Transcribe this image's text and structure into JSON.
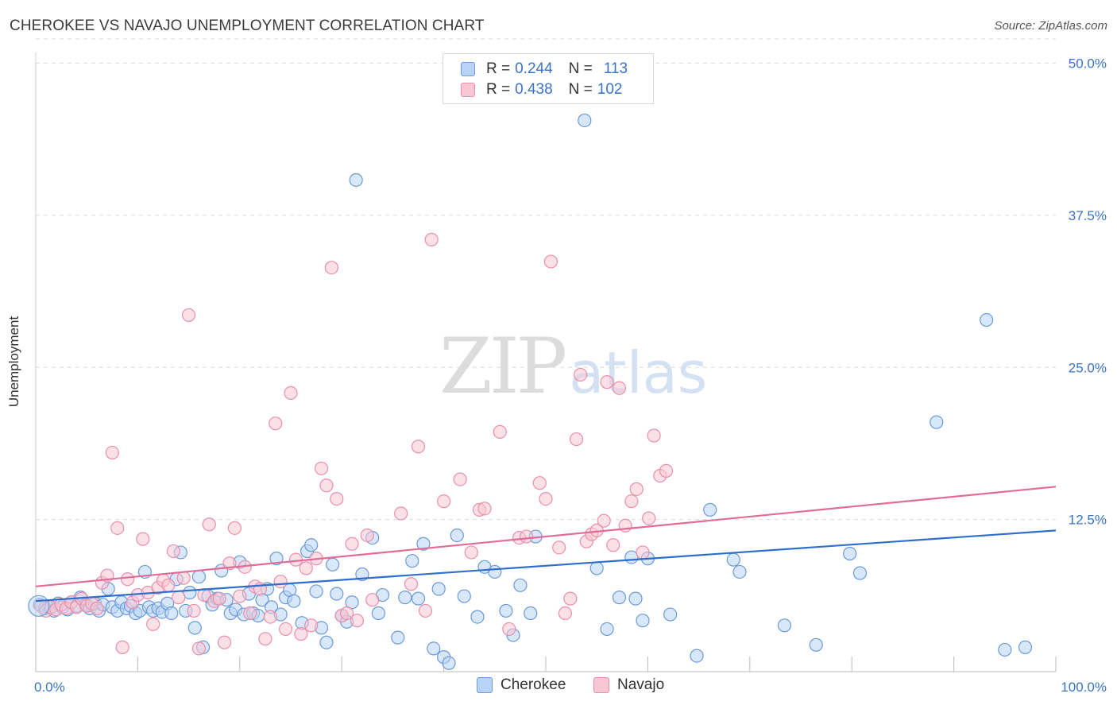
{
  "title": "CHEROKEE VS NAVAJO UNEMPLOYMENT CORRELATION CHART",
  "source": "Source: ZipAtlas.com",
  "watermark": {
    "zip": "ZIP",
    "atlas": "atlas"
  },
  "legend_top": {
    "rows": [
      {
        "r_label": "R =",
        "r_value": "0.244",
        "n_label": "N =",
        "n_value": "113"
      },
      {
        "r_label": "R =",
        "r_value": "0.438",
        "n_label": "N =",
        "n_value": "102"
      }
    ]
  },
  "colors": {
    "cherokee_fill": "#b8d3f5",
    "cherokee_stroke": "#6b9ad6",
    "cherokee_line": "#2f6fca",
    "navajo_fill": "#f8c6d4",
    "navajo_stroke": "#e88fab",
    "navajo_line": "#e06c97",
    "grid": "#dcdcdc",
    "axis_label": "#3b73c4"
  },
  "chart_data": {
    "type": "scatter",
    "title": "CHEROKEE VS NAVAJO UNEMPLOYMENT CORRELATION CHART",
    "xlabel": "",
    "ylabel": "Unemployment",
    "xlim": [
      0,
      100
    ],
    "ylim": [
      0,
      52
    ],
    "x_tick_labels": [
      "0.0%",
      "100.0%"
    ],
    "y_ticks": [
      12.5,
      25.0,
      37.5,
      50.0
    ],
    "y_tick_labels": [
      "12.5%",
      "25.0%",
      "37.5%",
      "50.0%"
    ],
    "grid": true,
    "legend": "bottom-center",
    "series": [
      {
        "name": "Cherokee",
        "r": 0.244,
        "n": 113,
        "trend": {
          "x": [
            0,
            100
          ],
          "y": [
            5.8,
            11.6
          ]
        },
        "points": [
          [
            0.4,
            5.5
          ],
          [
            0.9,
            5.2
          ],
          [
            1.3,
            5.3
          ],
          [
            1.8,
            5.0
          ],
          [
            2.2,
            5.6
          ],
          [
            2.6,
            5.3
          ],
          [
            3.1,
            5.1
          ],
          [
            3.5,
            5.7
          ],
          [
            4.0,
            5.4
          ],
          [
            4.4,
            6.1
          ],
          [
            4.9,
            5.5
          ],
          [
            5.3,
            5.2
          ],
          [
            5.8,
            5.6
          ],
          [
            6.2,
            5.0
          ],
          [
            6.6,
            5.5
          ],
          [
            7.1,
            6.8
          ],
          [
            7.5,
            5.3
          ],
          [
            8.0,
            5.0
          ],
          [
            8.4,
            5.7
          ],
          [
            8.9,
            5.2
          ],
          [
            9.3,
            5.4
          ],
          [
            9.8,
            4.8
          ],
          [
            10.2,
            5.0
          ],
          [
            10.7,
            8.2
          ],
          [
            11.1,
            5.3
          ],
          [
            11.5,
            5.0
          ],
          [
            12.0,
            5.2
          ],
          [
            12.4,
            4.9
          ],
          [
            12.9,
            5.6
          ],
          [
            13.3,
            4.8
          ],
          [
            13.8,
            7.6
          ],
          [
            14.2,
            9.8
          ],
          [
            14.7,
            5.0
          ],
          [
            15.1,
            6.5
          ],
          [
            15.6,
            3.6
          ],
          [
            16.0,
            7.8
          ],
          [
            16.4,
            2.0
          ],
          [
            16.9,
            6.2
          ],
          [
            17.3,
            5.5
          ],
          [
            17.8,
            6.0
          ],
          [
            18.2,
            8.3
          ],
          [
            18.7,
            5.9
          ],
          [
            19.1,
            4.8
          ],
          [
            19.6,
            5.1
          ],
          [
            20.0,
            9.0
          ],
          [
            20.4,
            4.7
          ],
          [
            20.9,
            6.4
          ],
          [
            21.3,
            4.8
          ],
          [
            21.8,
            4.6
          ],
          [
            22.2,
            5.9
          ],
          [
            22.7,
            6.8
          ],
          [
            23.1,
            5.3
          ],
          [
            23.6,
            9.3
          ],
          [
            24.0,
            4.7
          ],
          [
            24.5,
            6.1
          ],
          [
            24.9,
            6.7
          ],
          [
            25.3,
            5.8
          ],
          [
            26.1,
            4.0
          ],
          [
            26.6,
            9.9
          ],
          [
            27.0,
            10.4
          ],
          [
            27.5,
            6.6
          ],
          [
            28.0,
            3.6
          ],
          [
            28.5,
            2.4
          ],
          [
            29.1,
            8.8
          ],
          [
            29.5,
            6.4
          ],
          [
            30.0,
            4.6
          ],
          [
            30.5,
            4.1
          ],
          [
            31.0,
            5.7
          ],
          [
            31.4,
            40.4
          ],
          [
            32.0,
            8.0
          ],
          [
            33.0,
            11.0
          ],
          [
            33.6,
            4.8
          ],
          [
            34.0,
            6.3
          ],
          [
            35.5,
            2.8
          ],
          [
            36.2,
            6.1
          ],
          [
            36.9,
            9.1
          ],
          [
            37.5,
            6.0
          ],
          [
            38.0,
            10.5
          ],
          [
            39.0,
            1.9
          ],
          [
            39.5,
            6.8
          ],
          [
            40.0,
            1.2
          ],
          [
            40.5,
            0.7
          ],
          [
            41.3,
            11.2
          ],
          [
            42.0,
            6.2
          ],
          [
            43.3,
            4.5
          ],
          [
            44.0,
            8.6
          ],
          [
            45.0,
            8.2
          ],
          [
            46.1,
            5.0
          ],
          [
            46.8,
            3.0
          ],
          [
            47.5,
            7.1
          ],
          [
            48.5,
            4.8
          ],
          [
            49.0,
            11.1
          ],
          [
            53.8,
            45.3
          ],
          [
            55.0,
            8.5
          ],
          [
            56.0,
            3.5
          ],
          [
            57.2,
            6.1
          ],
          [
            58.4,
            9.4
          ],
          [
            58.8,
            6.0
          ],
          [
            59.5,
            4.2
          ],
          [
            60.0,
            9.3
          ],
          [
            62.2,
            4.7
          ],
          [
            64.8,
            1.3
          ],
          [
            66.1,
            13.3
          ],
          [
            68.4,
            9.2
          ],
          [
            69.0,
            8.2
          ],
          [
            73.4,
            3.8
          ],
          [
            76.5,
            2.2
          ],
          [
            79.8,
            9.7
          ],
          [
            80.8,
            8.1
          ],
          [
            88.3,
            20.5
          ],
          [
            93.2,
            28.9
          ],
          [
            95.0,
            1.8
          ],
          [
            97.0,
            2.0
          ]
        ]
      },
      {
        "name": "Navajo",
        "r": 0.438,
        "n": 102,
        "trend": {
          "x": [
            0,
            100
          ],
          "y": [
            7.0,
            15.2
          ]
        },
        "points": [
          [
            0.5,
            5.4
          ],
          [
            1.0,
            5.0
          ],
          [
            1.5,
            5.3
          ],
          [
            2.0,
            5.1
          ],
          [
            2.5,
            5.5
          ],
          [
            3.0,
            5.2
          ],
          [
            3.5,
            5.7
          ],
          [
            4.0,
            5.3
          ],
          [
            4.5,
            6.0
          ],
          [
            5.0,
            5.4
          ],
          [
            5.5,
            5.6
          ],
          [
            6.0,
            5.2
          ],
          [
            6.5,
            7.3
          ],
          [
            7.0,
            7.9
          ],
          [
            7.5,
            18.0
          ],
          [
            8.0,
            11.8
          ],
          [
            8.5,
            2.0
          ],
          [
            9.0,
            7.6
          ],
          [
            9.5,
            5.7
          ],
          [
            10.0,
            6.3
          ],
          [
            10.5,
            10.9
          ],
          [
            11.0,
            6.5
          ],
          [
            11.5,
            3.9
          ],
          [
            12.0,
            6.9
          ],
          [
            12.5,
            7.5
          ],
          [
            13.0,
            7.1
          ],
          [
            13.5,
            9.9
          ],
          [
            14.0,
            6.1
          ],
          [
            14.5,
            7.7
          ],
          [
            15.0,
            29.3
          ],
          [
            15.5,
            5.0
          ],
          [
            16.0,
            1.9
          ],
          [
            16.5,
            6.3
          ],
          [
            17.0,
            12.1
          ],
          [
            17.5,
            5.8
          ],
          [
            18.0,
            6.0
          ],
          [
            18.5,
            2.4
          ],
          [
            19.0,
            8.9
          ],
          [
            19.5,
            11.8
          ],
          [
            20.0,
            6.2
          ],
          [
            20.5,
            8.6
          ],
          [
            21.0,
            4.8
          ],
          [
            21.5,
            7.0
          ],
          [
            22.0,
            6.8
          ],
          [
            22.5,
            2.7
          ],
          [
            23.0,
            4.5
          ],
          [
            23.5,
            20.4
          ],
          [
            24.0,
            7.4
          ],
          [
            24.5,
            3.5
          ],
          [
            25.0,
            22.9
          ],
          [
            25.5,
            9.2
          ],
          [
            26.0,
            3.1
          ],
          [
            26.5,
            8.5
          ],
          [
            27.0,
            3.8
          ],
          [
            27.5,
            9.3
          ],
          [
            28.0,
            16.7
          ],
          [
            28.5,
            15.3
          ],
          [
            29.0,
            33.2
          ],
          [
            29.5,
            14.2
          ],
          [
            30.0,
            4.6
          ],
          [
            30.5,
            4.8
          ],
          [
            31.0,
            10.5
          ],
          [
            31.5,
            4.2
          ],
          [
            32.5,
            11.2
          ],
          [
            33.0,
            5.9
          ],
          [
            35.8,
            13.0
          ],
          [
            36.8,
            7.2
          ],
          [
            37.5,
            18.5
          ],
          [
            38.2,
            5.0
          ],
          [
            38.8,
            35.5
          ],
          [
            40.0,
            14.0
          ],
          [
            41.6,
            15.8
          ],
          [
            42.7,
            9.8
          ],
          [
            43.5,
            13.3
          ],
          [
            44.0,
            13.4
          ],
          [
            45.5,
            19.7
          ],
          [
            46.4,
            3.5
          ],
          [
            47.4,
            11.0
          ],
          [
            48.1,
            11.1
          ],
          [
            49.4,
            15.5
          ],
          [
            50.0,
            14.2
          ],
          [
            50.5,
            33.7
          ],
          [
            51.3,
            10.2
          ],
          [
            51.9,
            4.8
          ],
          [
            52.4,
            6.0
          ],
          [
            53.0,
            19.1
          ],
          [
            53.4,
            24.4
          ],
          [
            54.0,
            10.7
          ],
          [
            54.5,
            11.3
          ],
          [
            55.0,
            11.6
          ],
          [
            55.7,
            12.4
          ],
          [
            56.0,
            23.8
          ],
          [
            56.6,
            10.4
          ],
          [
            57.2,
            23.3
          ],
          [
            57.8,
            12.0
          ],
          [
            58.4,
            14.0
          ],
          [
            58.9,
            15.0
          ],
          [
            59.5,
            9.8
          ],
          [
            60.1,
            12.6
          ],
          [
            60.6,
            19.4
          ],
          [
            61.2,
            16.1
          ],
          [
            61.8,
            16.5
          ]
        ]
      }
    ]
  }
}
